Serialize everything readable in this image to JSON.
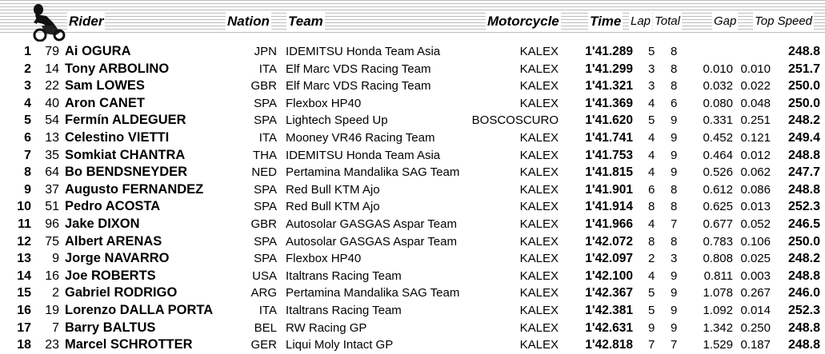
{
  "header": {
    "rider": "Rider",
    "nation": "Nation",
    "team": "Team",
    "motorcycle": "Motorcycle",
    "time": "Time",
    "lap": "Lap",
    "total": "Total",
    "gap": "Gap",
    "top_speed": "Top Speed"
  },
  "logo_icon": "motorcycle-rider-icon",
  "rows": [
    {
      "pos": "1",
      "num": "79",
      "rider": "Ai OGURA",
      "nation": "JPN",
      "team": "IDEMITSU Honda Team Asia",
      "moto": "KALEX",
      "time": "1'41.289",
      "lap": "5",
      "total": "8",
      "gap1": "",
      "gap2": "",
      "speed": "248.8"
    },
    {
      "pos": "2",
      "num": "14",
      "rider": "Tony ARBOLINO",
      "nation": "ITA",
      "team": "Elf Marc VDS Racing Team",
      "moto": "KALEX",
      "time": "1'41.299",
      "lap": "3",
      "total": "8",
      "gap1": "0.010",
      "gap2": "0.010",
      "speed": "251.7"
    },
    {
      "pos": "3",
      "num": "22",
      "rider": "Sam LOWES",
      "nation": "GBR",
      "team": "Elf Marc VDS Racing Team",
      "moto": "KALEX",
      "time": "1'41.321",
      "lap": "3",
      "total": "8",
      "gap1": "0.032",
      "gap2": "0.022",
      "speed": "250.0"
    },
    {
      "pos": "4",
      "num": "40",
      "rider": "Aron CANET",
      "nation": "SPA",
      "team": "Flexbox HP40",
      "moto": "KALEX",
      "time": "1'41.369",
      "lap": "4",
      "total": "6",
      "gap1": "0.080",
      "gap2": "0.048",
      "speed": "250.0"
    },
    {
      "pos": "5",
      "num": "54",
      "rider": "Fermín ALDEGUER",
      "nation": "SPA",
      "team": "Lightech Speed Up",
      "moto": "BOSCOSCURO",
      "time": "1'41.620",
      "lap": "5",
      "total": "9",
      "gap1": "0.331",
      "gap2": "0.251",
      "speed": "248.2"
    },
    {
      "pos": "6",
      "num": "13",
      "rider": "Celestino VIETTI",
      "nation": "ITA",
      "team": "Mooney VR46 Racing Team",
      "moto": "KALEX",
      "time": "1'41.741",
      "lap": "4",
      "total": "9",
      "gap1": "0.452",
      "gap2": "0.121",
      "speed": "249.4"
    },
    {
      "pos": "7",
      "num": "35",
      "rider": "Somkiat CHANTRA",
      "nation": "THA",
      "team": "IDEMITSU Honda Team Asia",
      "moto": "KALEX",
      "time": "1'41.753",
      "lap": "4",
      "total": "9",
      "gap1": "0.464",
      "gap2": "0.012",
      "speed": "248.8"
    },
    {
      "pos": "8",
      "num": "64",
      "rider": "Bo BENDSNEYDER",
      "nation": "NED",
      "team": "Pertamina Mandalika SAG Team",
      "moto": "KALEX",
      "time": "1'41.815",
      "lap": "4",
      "total": "9",
      "gap1": "0.526",
      "gap2": "0.062",
      "speed": "247.7"
    },
    {
      "pos": "9",
      "num": "37",
      "rider": "Augusto FERNANDEZ",
      "nation": "SPA",
      "team": "Red Bull KTM Ajo",
      "moto": "KALEX",
      "time": "1'41.901",
      "lap": "6",
      "total": "8",
      "gap1": "0.612",
      "gap2": "0.086",
      "speed": "248.8"
    },
    {
      "pos": "10",
      "num": "51",
      "rider": "Pedro ACOSTA",
      "nation": "SPA",
      "team": "Red Bull KTM Ajo",
      "moto": "KALEX",
      "time": "1'41.914",
      "lap": "8",
      "total": "8",
      "gap1": "0.625",
      "gap2": "0.013",
      "speed": "252.3"
    },
    {
      "pos": "11",
      "num": "96",
      "rider": "Jake DIXON",
      "nation": "GBR",
      "team": "Autosolar GASGAS Aspar Team",
      "moto": "KALEX",
      "time": "1'41.966",
      "lap": "4",
      "total": "7",
      "gap1": "0.677",
      "gap2": "0.052",
      "speed": "246.5"
    },
    {
      "pos": "12",
      "num": "75",
      "rider": "Albert ARENAS",
      "nation": "SPA",
      "team": "Autosolar GASGAS Aspar Team",
      "moto": "KALEX",
      "time": "1'42.072",
      "lap": "8",
      "total": "8",
      "gap1": "0.783",
      "gap2": "0.106",
      "speed": "250.0"
    },
    {
      "pos": "13",
      "num": "9",
      "rider": "Jorge NAVARRO",
      "nation": "SPA",
      "team": "Flexbox HP40",
      "moto": "KALEX",
      "time": "1'42.097",
      "lap": "2",
      "total": "3",
      "gap1": "0.808",
      "gap2": "0.025",
      "speed": "248.2"
    },
    {
      "pos": "14",
      "num": "16",
      "rider": "Joe ROBERTS",
      "nation": "USA",
      "team": "Italtrans Racing Team",
      "moto": "KALEX",
      "time": "1'42.100",
      "lap": "4",
      "total": "9",
      "gap1": "0.811",
      "gap2": "0.003",
      "speed": "248.8"
    },
    {
      "pos": "15",
      "num": "2",
      "rider": "Gabriel RODRIGO",
      "nation": "ARG",
      "team": "Pertamina Mandalika SAG Team",
      "moto": "KALEX",
      "time": "1'42.367",
      "lap": "5",
      "total": "9",
      "gap1": "1.078",
      "gap2": "0.267",
      "speed": "246.0"
    },
    {
      "pos": "16",
      "num": "19",
      "rider": "Lorenzo DALLA PORTA",
      "nation": "ITA",
      "team": "Italtrans Racing Team",
      "moto": "KALEX",
      "time": "1'42.381",
      "lap": "5",
      "total": "9",
      "gap1": "1.092",
      "gap2": "0.014",
      "speed": "252.3"
    },
    {
      "pos": "17",
      "num": "7",
      "rider": "Barry BALTUS",
      "nation": "BEL",
      "team": "RW Racing GP",
      "moto": "KALEX",
      "time": "1'42.631",
      "lap": "9",
      "total": "9",
      "gap1": "1.342",
      "gap2": "0.250",
      "speed": "248.8"
    },
    {
      "pos": "18",
      "num": "23",
      "rider": "Marcel SCHROTTER",
      "nation": "GER",
      "team": "Liqui Moly Intact GP",
      "moto": "KALEX",
      "time": "1'42.818",
      "lap": "7",
      "total": "7",
      "gap1": "1.529",
      "gap2": "0.187",
      "speed": "248.8"
    }
  ]
}
